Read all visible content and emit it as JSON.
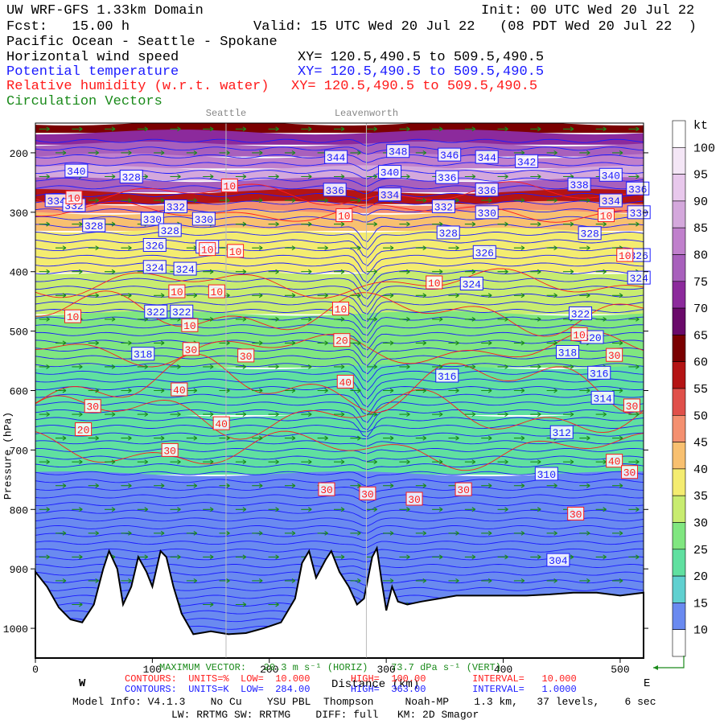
{
  "header": {
    "line1_left": "UW WRF-GFS 1.33km Domain",
    "line1_right": "Init: 00 UTC Wed 20 Jul 22",
    "line2_left": "Fcst:   15.00 h",
    "line2_right": "Valid: 15 UTC Wed 20 Jul 22   (08 PDT Wed 20 Jul 22  )",
    "region": "Pacific Ocean - Seattle - Spokane",
    "field1": "Horizontal wind speed",
    "field1_xy": "XY= 120.5,490.5 to 509.5,490.5",
    "field2": "Potential temperature",
    "field2_xy": "XY= 120.5,490.5 to 509.5,490.5",
    "field3": "Relative humidity (w.r.t. water)",
    "field3_xy": "XY= 120.5,490.5 to 509.5,490.5",
    "field4": "Circulation Vectors"
  },
  "colors": {
    "wind_label": "#000000",
    "theta": "#1a1aff",
    "rh": "#ff1a1a",
    "vectors": "#1a8a1a"
  },
  "chart_data": {
    "type": "heatmap",
    "subtype": "vertical cross-section",
    "x_axis": {
      "label": "Distance (km)",
      "range": [
        0,
        520
      ],
      "ticks": [
        0,
        100,
        200,
        300,
        400,
        500
      ],
      "left_label": "W",
      "right_label": "E"
    },
    "y_axis": {
      "label": "Pressure (hPa)",
      "range": [
        1050,
        150
      ],
      "inverted": true,
      "ticks": [
        200,
        300,
        400,
        500,
        600,
        700,
        800,
        900,
        1000
      ],
      "tick_labels": [
        "200",
        "300",
        "400",
        "500",
        "600",
        "700",
        "800",
        "900",
        "1000"
      ]
    },
    "markers": [
      {
        "name": "Seattle",
        "x": 163
      },
      {
        "name": "Leavenworth",
        "x": 283
      }
    ],
    "colorbar": {
      "unit": "kt",
      "levels": [
        100,
        95,
        90,
        85,
        80,
        75,
        70,
        65,
        60,
        55,
        50,
        45,
        40,
        35,
        30,
        25,
        20,
        15,
        10
      ],
      "colors": [
        "#ffffff",
        "#f4e6f6",
        "#e8c8ec",
        "#d4a8dc",
        "#c080cc",
        "#a860bc",
        "#8c2a9c",
        "#6a0a6a",
        "#7a0000",
        "#b41414",
        "#e0504a",
        "#f49070",
        "#f8c070",
        "#f4ec70",
        "#c8ec70",
        "#80e680",
        "#60e0a0",
        "#60d0d0",
        "#6a8af0",
        "#ffffff"
      ]
    },
    "wind_bands": [
      {
        "p_top": 150,
        "p_bottom": 165,
        "kt": 60
      },
      {
        "p_top": 165,
        "p_bottom": 185,
        "kt": 70
      },
      {
        "p_top": 185,
        "p_bottom": 205,
        "kt": 75
      },
      {
        "p_top": 205,
        "p_bottom": 225,
        "kt": 80
      },
      {
        "p_top": 225,
        "p_bottom": 245,
        "kt": 85
      },
      {
        "p_top": 245,
        "p_bottom": 265,
        "kt": 75
      },
      {
        "p_top": 265,
        "p_bottom": 285,
        "kt": 55
      },
      {
        "p_top": 285,
        "p_bottom": 300,
        "kt": 45
      },
      {
        "p_top": 300,
        "p_bottom": 330,
        "kt": 40
      },
      {
        "p_top": 330,
        "p_bottom": 400,
        "kt": 35
      },
      {
        "p_top": 400,
        "p_bottom": 470,
        "kt": 30
      },
      {
        "p_top": 470,
        "p_bottom": 560,
        "kt": 25
      },
      {
        "p_top": 560,
        "p_bottom": 640,
        "kt": 20
      },
      {
        "p_top": 640,
        "p_bottom": 740,
        "kt": 20
      },
      {
        "p_top": 740,
        "p_bottom": 1050,
        "kt": 10
      }
    ],
    "theta_labels": [
      {
        "x": 35,
        "p": 230,
        "v": "340"
      },
      {
        "x": 82,
        "p": 240,
        "v": "328"
      },
      {
        "x": 18,
        "p": 280,
        "v": "334"
      },
      {
        "x": 33,
        "p": 288,
        "v": "332"
      },
      {
        "x": 120,
        "p": 290,
        "v": "332"
      },
      {
        "x": 50,
        "p": 322,
        "v": "328"
      },
      {
        "x": 100,
        "p": 311,
        "v": "330"
      },
      {
        "x": 144,
        "p": 311,
        "v": "330"
      },
      {
        "x": 115,
        "p": 330,
        "v": "328"
      },
      {
        "x": 102,
        "p": 355,
        "v": "326"
      },
      {
        "x": 147,
        "p": 358,
        "v": "326"
      },
      {
        "x": 102,
        "p": 392,
        "v": "324"
      },
      {
        "x": 128,
        "p": 395,
        "v": "324"
      },
      {
        "x": 103,
        "p": 467,
        "v": "322"
      },
      {
        "x": 125,
        "p": 467,
        "v": "322"
      },
      {
        "x": 92,
        "p": 538,
        "v": "318"
      },
      {
        "x": 257,
        "p": 207,
        "v": "344"
      },
      {
        "x": 310,
        "p": 197,
        "v": "348"
      },
      {
        "x": 303,
        "p": 232,
        "v": "340"
      },
      {
        "x": 256,
        "p": 262,
        "v": "336"
      },
      {
        "x": 303,
        "p": 270,
        "v": "334"
      },
      {
        "x": 354,
        "p": 203,
        "v": "346"
      },
      {
        "x": 352,
        "p": 241,
        "v": "336"
      },
      {
        "x": 386,
        "p": 207,
        "v": "344"
      },
      {
        "x": 386,
        "p": 262,
        "v": "336"
      },
      {
        "x": 420,
        "p": 214,
        "v": "342"
      },
      {
        "x": 349,
        "p": 290,
        "v": "332"
      },
      {
        "x": 386,
        "p": 300,
        "v": "330"
      },
      {
        "x": 353,
        "p": 334,
        "v": "328"
      },
      {
        "x": 384,
        "p": 367,
        "v": "326"
      },
      {
        "x": 373,
        "p": 420,
        "v": "324"
      },
      {
        "x": 465,
        "p": 253,
        "v": "338"
      },
      {
        "x": 492,
        "p": 237,
        "v": "340"
      },
      {
        "x": 492,
        "p": 280,
        "v": "334"
      },
      {
        "x": 515,
        "p": 260,
        "v": "336"
      },
      {
        "x": 516,
        "p": 300,
        "v": "330"
      },
      {
        "x": 474,
        "p": 335,
        "v": "328"
      },
      {
        "x": 516,
        "p": 372,
        "v": "326"
      },
      {
        "x": 516,
        "p": 410,
        "v": "324"
      },
      {
        "x": 466,
        "p": 470,
        "v": "322"
      },
      {
        "x": 476,
        "p": 510,
        "v": "320"
      },
      {
        "x": 455,
        "p": 535,
        "v": "318"
      },
      {
        "x": 352,
        "p": 575,
        "v": "316"
      },
      {
        "x": 482,
        "p": 570,
        "v": "316"
      },
      {
        "x": 485,
        "p": 612,
        "v": "314"
      },
      {
        "x": 450,
        "p": 670,
        "v": "312"
      },
      {
        "x": 437,
        "p": 740,
        "v": "310"
      },
      {
        "x": 447,
        "p": 885,
        "v": "304"
      }
    ],
    "rh_labels": [
      {
        "x": 166,
        "p": 255,
        "v": "10"
      },
      {
        "x": 33,
        "p": 275,
        "v": "10"
      },
      {
        "x": 264,
        "p": 305,
        "v": "10"
      },
      {
        "x": 171,
        "p": 365,
        "v": "10"
      },
      {
        "x": 121,
        "p": 433,
        "v": "10"
      },
      {
        "x": 155,
        "p": 433,
        "v": "10"
      },
      {
        "x": 32,
        "p": 475,
        "v": "10"
      },
      {
        "x": 147,
        "p": 362,
        "v": "10"
      },
      {
        "x": 341,
        "p": 418,
        "v": "10"
      },
      {
        "x": 261,
        "p": 462,
        "v": "10"
      },
      {
        "x": 488,
        "p": 305,
        "v": "10"
      },
      {
        "x": 504,
        "p": 372,
        "v": "10"
      },
      {
        "x": 465,
        "p": 505,
        "v": "10"
      },
      {
        "x": 132,
        "p": 490,
        "v": "10"
      },
      {
        "x": 133,
        "p": 530,
        "v": "30"
      },
      {
        "x": 180,
        "p": 541,
        "v": "30"
      },
      {
        "x": 262,
        "p": 515,
        "v": "20"
      },
      {
        "x": 265,
        "p": 585,
        "v": "40"
      },
      {
        "x": 123,
        "p": 598,
        "v": "40"
      },
      {
        "x": 49,
        "p": 626,
        "v": "30"
      },
      {
        "x": 159,
        "p": 655,
        "v": "40"
      },
      {
        "x": 41,
        "p": 665,
        "v": "20"
      },
      {
        "x": 115,
        "p": 700,
        "v": "30"
      },
      {
        "x": 249,
        "p": 766,
        "v": "30"
      },
      {
        "x": 284,
        "p": 773,
        "v": "30"
      },
      {
        "x": 324,
        "p": 782,
        "v": "30"
      },
      {
        "x": 366,
        "p": 766,
        "v": "30"
      },
      {
        "x": 462,
        "p": 807,
        "v": "30"
      },
      {
        "x": 495,
        "p": 718,
        "v": "40"
      },
      {
        "x": 508,
        "p": 737,
        "v": "30"
      },
      {
        "x": 495,
        "p": 540,
        "v": "30"
      },
      {
        "x": 510,
        "p": 625,
        "v": "30"
      }
    ]
  },
  "footer": {
    "max_vector": "MAXIMUM VECTOR:   20.3 m s⁻¹ (HORIZ)    73.7 dPa s⁻¹ (VERT)",
    "rh_contours": "CONTOURS:  UNITS=%  LOW=  10.000       HIGH=  100.00        INTERVAL=   10.000",
    "theta_contours": "CONTOURS:  UNITS=K  LOW=  284.00       HIGH=  363.00        INTERVAL=   1.0000",
    "model_info": "Model Info: V4.1.3    No Cu    YSU PBL  Thompson     Noah-MP    1.3 km,   37 levels,    6 sec",
    "model_info2": "LW: RRTMG SW: RRTMG    DIFF: full   KM: 2D Smagor"
  }
}
